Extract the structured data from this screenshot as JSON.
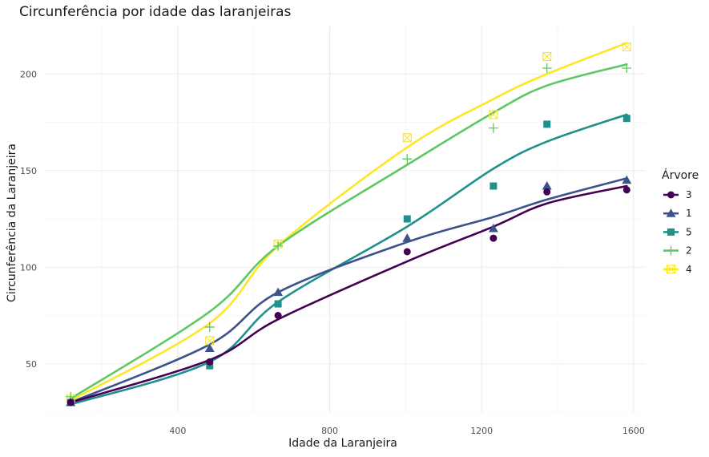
{
  "chart_data": {
    "type": "scatter",
    "title": "Circunferência por idade das laranjeiras",
    "xlabel": "Idade da Laranjeira",
    "ylabel": "Circunferência da Laranjeira",
    "xlim": [
      50,
      1632
    ],
    "ylim": [
      25,
      225
    ],
    "x_ticks": [
      400,
      800,
      1200,
      1600
    ],
    "y_ticks": [
      50,
      100,
      150,
      200
    ],
    "grid": true,
    "legend": {
      "title": "Árvore",
      "position": "right"
    },
    "x": [
      118,
      484,
      664,
      1004,
      1231,
      1372,
      1582
    ],
    "series": [
      {
        "name": "3",
        "color": "#440154",
        "shape": "circle",
        "values": [
          30,
          51,
          75,
          108,
          115,
          139,
          140
        ],
        "smooth": [
          30,
          52,
          73,
          103,
          121,
          133,
          142
        ]
      },
      {
        "name": "1",
        "color": "#3B528B",
        "shape": "triangle",
        "values": [
          30,
          58,
          87,
          115,
          120,
          142,
          145
        ],
        "smooth": [
          30,
          60,
          87,
          113,
          126,
          135,
          146
        ]
      },
      {
        "name": "5",
        "color": "#21908C",
        "shape": "square",
        "values": [
          30,
          49,
          81,
          125,
          142,
          174,
          177
        ],
        "smooth": [
          29,
          51,
          82,
          121,
          151,
          165,
          179
        ]
      },
      {
        "name": "2",
        "color": "#5DC863",
        "shape": "plus",
        "values": [
          33,
          69,
          111,
          156,
          172,
          203,
          203
        ],
        "smooth": [
          32,
          77,
          111,
          153,
          180,
          194,
          205
        ]
      },
      {
        "name": "4",
        "color": "#FDE725",
        "shape": "boxx",
        "values": [
          32,
          62,
          112,
          167,
          179,
          209,
          214
        ],
        "smooth": [
          31,
          71,
          111,
          162,
          187,
          200,
          216
        ]
      }
    ]
  }
}
